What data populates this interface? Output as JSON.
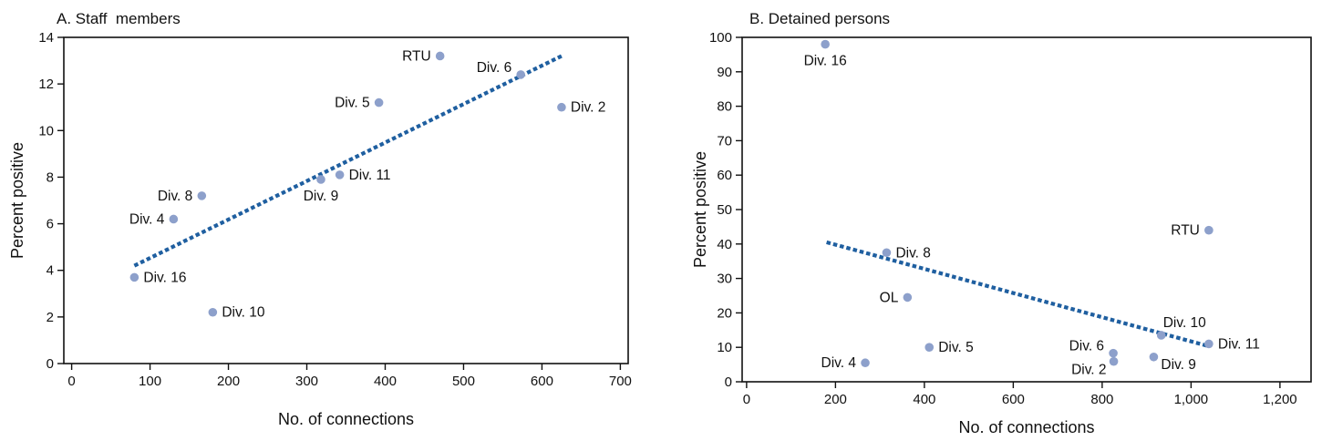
{
  "colors": {
    "point": "#8da0cb",
    "trend": "#1f5fa0",
    "axis": "#111111"
  },
  "chart_data": [
    {
      "type": "scatter",
      "title": "A. Staff  members",
      "xlabel": "No. of connections",
      "ylabel": "Percent positive",
      "xlim": [
        -10,
        710
      ],
      "ylim": [
        0,
        14
      ],
      "xticks": [
        0,
        100,
        200,
        300,
        400,
        500,
        600,
        700
      ],
      "xtick_labels": [
        "0",
        "100",
        "200",
        "300",
        "400",
        "500",
        "600",
        "700"
      ],
      "yticks": [
        0,
        2,
        4,
        6,
        8,
        10,
        12,
        14
      ],
      "ytick_labels": [
        "0",
        "2",
        "4",
        "6",
        "8",
        "10",
        "12",
        "14"
      ],
      "trend_line": {
        "x": [
          80,
          625
        ],
        "y": [
          4.2,
          13.2
        ]
      },
      "points": [
        {
          "label": "RTU",
          "x": 470,
          "y": 13.2,
          "label_side": "left"
        },
        {
          "label": "Div. 6",
          "x": 573,
          "y": 12.4,
          "label_side": "upper-left"
        },
        {
          "label": "Div. 2",
          "x": 625,
          "y": 11.0,
          "label_side": "right"
        },
        {
          "label": "Div. 5",
          "x": 392,
          "y": 11.2,
          "label_side": "left"
        },
        {
          "label": "Div. 11",
          "x": 342,
          "y": 8.1,
          "label_side": "right"
        },
        {
          "label": "Div. 9",
          "x": 318,
          "y": 7.9,
          "label_side": "below"
        },
        {
          "label": "Div. 8",
          "x": 166,
          "y": 7.2,
          "label_side": "left"
        },
        {
          "label": "Div. 4",
          "x": 130,
          "y": 6.2,
          "label_side": "left"
        },
        {
          "label": "Div. 16",
          "x": 80,
          "y": 3.7,
          "label_side": "right"
        },
        {
          "label": "Div. 10",
          "x": 180,
          "y": 2.2,
          "label_side": "right"
        }
      ]
    },
    {
      "type": "scatter",
      "title": "B. Detained persons",
      "xlabel": "No. of connections",
      "ylabel": "Percent positive",
      "xlim": [
        -10,
        1270
      ],
      "ylim": [
        0,
        100
      ],
      "xticks": [
        0,
        200,
        400,
        600,
        800,
        1000,
        1200
      ],
      "xtick_labels": [
        "0",
        "200",
        "400",
        "600",
        "800",
        "1,000",
        "1,200"
      ],
      "yticks": [
        0,
        10,
        20,
        30,
        40,
        50,
        60,
        70,
        80,
        90,
        100
      ],
      "ytick_labels": [
        "0",
        "10",
        "20",
        "30",
        "40",
        "50",
        "60",
        "70",
        "80",
        "90",
        "100"
      ],
      "trend_line": {
        "x": [
          180,
          1035
        ],
        "y": [
          40.5,
          10.5
        ]
      },
      "points": [
        {
          "label": "Div. 16",
          "x": 177,
          "y": 98,
          "label_side": "below"
        },
        {
          "label": "RTU",
          "x": 1040,
          "y": 44,
          "label_side": "left"
        },
        {
          "label": "Div. 8",
          "x": 315,
          "y": 37.5,
          "label_side": "right"
        },
        {
          "label": "OL",
          "x": 362,
          "y": 24.5,
          "label_side": "left"
        },
        {
          "label": "Div. 10",
          "x": 933,
          "y": 13.5,
          "label_side": "upper-right"
        },
        {
          "label": "Div. 11",
          "x": 1040,
          "y": 11,
          "label_side": "right"
        },
        {
          "label": "Div. 5",
          "x": 411,
          "y": 10,
          "label_side": "right"
        },
        {
          "label": "Div. 6",
          "x": 825,
          "y": 8.3,
          "label_side": "upper-left"
        },
        {
          "label": "Div. 9",
          "x": 916,
          "y": 7.2,
          "label_side": "lower-right"
        },
        {
          "label": "Div. 2",
          "x": 826,
          "y": 5.9,
          "label_side": "lower-left"
        },
        {
          "label": "Div. 4",
          "x": 267,
          "y": 5.5,
          "label_side": "left"
        }
      ]
    }
  ]
}
